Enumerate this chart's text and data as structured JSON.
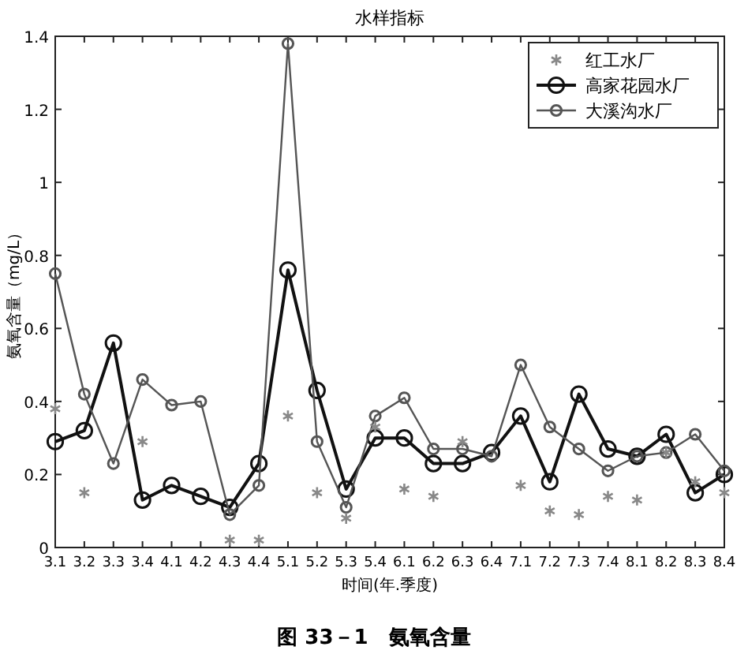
{
  "chart_data": {
    "type": "line",
    "title": "水样指标",
    "xlabel": "时间(年.季度)",
    "ylabel": "氨氧含量（mg/L）",
    "annotations": [
      "图 33－1　氨氧含量"
    ],
    "categories": [
      "3.1",
      "3.2",
      "3.3",
      "3.4",
      "4.1",
      "4.2",
      "4.3",
      "4.4",
      "5.1",
      "5.2",
      "5.3",
      "5.4",
      "6.1",
      "6.2",
      "6.3",
      "6.4",
      "7.1",
      "7.2",
      "7.3",
      "7.4",
      "8.1",
      "8.2",
      "8.3",
      "8.4"
    ],
    "series": [
      {
        "name": "红工水厂",
        "type": "scatter",
        "marker": "cross",
        "color": "#888888",
        "values": [
          0.38,
          0.15,
          null,
          0.29,
          null,
          null,
          0.02,
          0.02,
          0.36,
          0.15,
          0.08,
          0.33,
          0.16,
          0.14,
          0.29,
          null,
          0.17,
          0.1,
          0.09,
          0.14,
          0.13,
          0.26,
          0.18,
          0.15
        ]
      },
      {
        "name": "高家花园水厂",
        "type": "line",
        "marker": "circle",
        "color": "#111111",
        "values": [
          0.29,
          0.32,
          0.56,
          0.13,
          0.17,
          0.14,
          0.11,
          0.23,
          0.76,
          0.43,
          0.16,
          0.3,
          0.3,
          0.23,
          0.23,
          0.26,
          0.36,
          0.18,
          0.42,
          0.27,
          0.25,
          0.31,
          0.15,
          0.2
        ]
      },
      {
        "name": "大溪沟水厂",
        "type": "line",
        "marker": "circle",
        "color": "#555555",
        "values": [
          0.75,
          0.42,
          0.23,
          0.46,
          0.39,
          0.4,
          0.09,
          0.17,
          1.38,
          0.29,
          0.11,
          0.36,
          0.41,
          0.27,
          0.27,
          0.25,
          0.5,
          0.33,
          0.27,
          0.21,
          0.25,
          0.26,
          0.31,
          0.21
        ]
      }
    ],
    "ylim": [
      0,
      1.4
    ],
    "yticks": [
      0,
      0.2,
      0.4,
      0.6,
      0.8,
      1,
      1.2,
      1.4
    ],
    "legend": "top right",
    "grid": false
  }
}
